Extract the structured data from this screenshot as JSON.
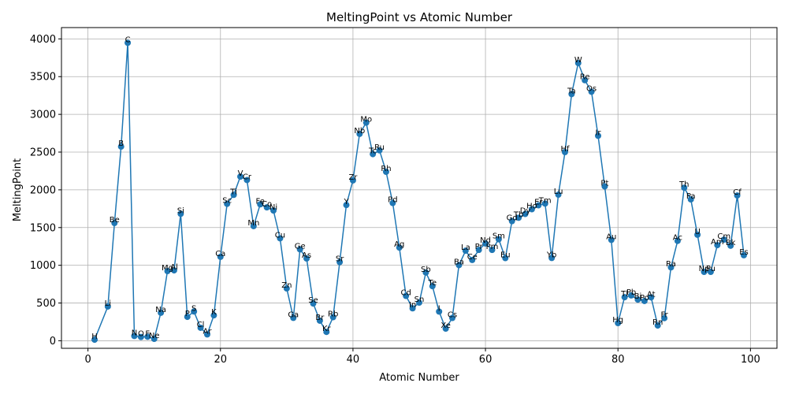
{
  "chart_data": {
    "type": "line",
    "title": "MeltingPoint vs Atomic Number",
    "xlabel": "Atomic Number",
    "ylabel": "MeltingPoint",
    "xlim": [
      -4,
      104
    ],
    "ylim": [
      -100,
      4150
    ],
    "xticks": [
      0,
      20,
      40,
      60,
      80,
      100
    ],
    "yticks": [
      0,
      500,
      1000,
      1500,
      2000,
      2500,
      3000,
      3500,
      4000
    ],
    "grid": true,
    "marker": "circle",
    "colors": {
      "series": "#1f77b4",
      "grid": "#b0b0b0"
    },
    "points": [
      {
        "x": 1,
        "y": 14,
        "label": "H"
      },
      {
        "x": 3,
        "y": 454,
        "label": "Li"
      },
      {
        "x": 4,
        "y": 1560,
        "label": "Be"
      },
      {
        "x": 5,
        "y": 2573,
        "label": "B"
      },
      {
        "x": 6,
        "y": 3948,
        "label": "C"
      },
      {
        "x": 7,
        "y": 63,
        "label": "N"
      },
      {
        "x": 8,
        "y": 50,
        "label": "O"
      },
      {
        "x": 9,
        "y": 53,
        "label": "F"
      },
      {
        "x": 10,
        "y": 25,
        "label": "Ne"
      },
      {
        "x": 11,
        "y": 371,
        "label": "Na"
      },
      {
        "x": 12,
        "y": 923,
        "label": "Mg"
      },
      {
        "x": 13,
        "y": 933,
        "label": "Al"
      },
      {
        "x": 14,
        "y": 1683,
        "label": "Si"
      },
      {
        "x": 15,
        "y": 317,
        "label": "P"
      },
      {
        "x": 16,
        "y": 388,
        "label": "S"
      },
      {
        "x": 17,
        "y": 172,
        "label": "Cl"
      },
      {
        "x": 18,
        "y": 84,
        "label": "Ar"
      },
      {
        "x": 19,
        "y": 337,
        "label": "K"
      },
      {
        "x": 20,
        "y": 1112,
        "label": "Ca"
      },
      {
        "x": 21,
        "y": 1814,
        "label": "Sc"
      },
      {
        "x": 22,
        "y": 1933,
        "label": "Ti"
      },
      {
        "x": 23,
        "y": 2175,
        "label": "V"
      },
      {
        "x": 24,
        "y": 2130,
        "label": "Cr"
      },
      {
        "x": 25,
        "y": 1519,
        "label": "Mn"
      },
      {
        "x": 26,
        "y": 1808,
        "label": "Fe"
      },
      {
        "x": 27,
        "y": 1768,
        "label": "Co"
      },
      {
        "x": 28,
        "y": 1726,
        "label": "Ni"
      },
      {
        "x": 29,
        "y": 1357,
        "label": "Cu"
      },
      {
        "x": 30,
        "y": 693,
        "label": "Zn"
      },
      {
        "x": 31,
        "y": 303,
        "label": "Ga"
      },
      {
        "x": 32,
        "y": 1211,
        "label": "Ge"
      },
      {
        "x": 33,
        "y": 1090,
        "label": "As"
      },
      {
        "x": 34,
        "y": 494,
        "label": "Se"
      },
      {
        "x": 35,
        "y": 266,
        "label": "Br"
      },
      {
        "x": 36,
        "y": 117,
        "label": "Kr"
      },
      {
        "x": 37,
        "y": 312,
        "label": "Rb"
      },
      {
        "x": 38,
        "y": 1042,
        "label": "Sr"
      },
      {
        "x": 39,
        "y": 1799,
        "label": "Y"
      },
      {
        "x": 40,
        "y": 2125,
        "label": "Zr"
      },
      {
        "x": 41,
        "y": 2741,
        "label": "Nb"
      },
      {
        "x": 42,
        "y": 2890,
        "label": "Mo"
      },
      {
        "x": 43,
        "y": 2473,
        "label": "Tc"
      },
      {
        "x": 44,
        "y": 2523,
        "label": "Ru"
      },
      {
        "x": 45,
        "y": 2239,
        "label": "Rh"
      },
      {
        "x": 46,
        "y": 1825,
        "label": "Pd"
      },
      {
        "x": 47,
        "y": 1235,
        "label": "Ag"
      },
      {
        "x": 48,
        "y": 594,
        "label": "Cd"
      },
      {
        "x": 49,
        "y": 430,
        "label": "In"
      },
      {
        "x": 50,
        "y": 505,
        "label": "Sn"
      },
      {
        "x": 51,
        "y": 904,
        "label": "Sb"
      },
      {
        "x": 52,
        "y": 723,
        "label": "Te"
      },
      {
        "x": 53,
        "y": 387,
        "label": "I"
      },
      {
        "x": 54,
        "y": 161,
        "label": "Xe"
      },
      {
        "x": 55,
        "y": 302,
        "label": "Cs"
      },
      {
        "x": 56,
        "y": 1002,
        "label": "Ba"
      },
      {
        "x": 57,
        "y": 1193,
        "label": "La"
      },
      {
        "x": 58,
        "y": 1071,
        "label": "Ce"
      },
      {
        "x": 59,
        "y": 1204,
        "label": "Pr"
      },
      {
        "x": 60,
        "y": 1289,
        "label": "Nd"
      },
      {
        "x": 61,
        "y": 1204,
        "label": "Pm"
      },
      {
        "x": 62,
        "y": 1345,
        "label": "Sm"
      },
      {
        "x": 63,
        "y": 1095,
        "label": "Eu"
      },
      {
        "x": 64,
        "y": 1585,
        "label": "Gd"
      },
      {
        "x": 65,
        "y": 1630,
        "label": "Tb"
      },
      {
        "x": 66,
        "y": 1680,
        "label": "Dy"
      },
      {
        "x": 67,
        "y": 1743,
        "label": "Ho"
      },
      {
        "x": 68,
        "y": 1795,
        "label": "Er"
      },
      {
        "x": 69,
        "y": 1818,
        "label": "Tm"
      },
      {
        "x": 70,
        "y": 1097,
        "label": "Yb"
      },
      {
        "x": 71,
        "y": 1936,
        "label": "Lu"
      },
      {
        "x": 72,
        "y": 2500,
        "label": "Hf"
      },
      {
        "x": 73,
        "y": 3269,
        "label": "Ta"
      },
      {
        "x": 74,
        "y": 3680,
        "label": "W"
      },
      {
        "x": 75,
        "y": 3453,
        "label": "Re"
      },
      {
        "x": 76,
        "y": 3300,
        "label": "Os"
      },
      {
        "x": 77,
        "y": 2716,
        "label": "Ir"
      },
      {
        "x": 78,
        "y": 2045,
        "label": "Pt"
      },
      {
        "x": 79,
        "y": 1337,
        "label": "Au"
      },
      {
        "x": 80,
        "y": 234,
        "label": "Hg"
      },
      {
        "x": 81,
        "y": 577,
        "label": "Tl"
      },
      {
        "x": 82,
        "y": 601,
        "label": "Pb"
      },
      {
        "x": 83,
        "y": 545,
        "label": "Bi"
      },
      {
        "x": 84,
        "y": 527,
        "label": "Po"
      },
      {
        "x": 85,
        "y": 575,
        "label": "At"
      },
      {
        "x": 86,
        "y": 202,
        "label": "Rn"
      },
      {
        "x": 87,
        "y": 300,
        "label": "Fr"
      },
      {
        "x": 88,
        "y": 973,
        "label": "Ra"
      },
      {
        "x": 89,
        "y": 1323,
        "label": "Ac"
      },
      {
        "x": 90,
        "y": 2028,
        "label": "Th"
      },
      {
        "x": 91,
        "y": 1873,
        "label": "Pa"
      },
      {
        "x": 92,
        "y": 1405,
        "label": "U"
      },
      {
        "x": 93,
        "y": 913,
        "label": "Np"
      },
      {
        "x": 94,
        "y": 913,
        "label": "Pu"
      },
      {
        "x": 95,
        "y": 1267,
        "label": "Am"
      },
      {
        "x": 96,
        "y": 1340,
        "label": "Cm"
      },
      {
        "x": 97,
        "y": 1259,
        "label": "Bk"
      },
      {
        "x": 98,
        "y": 1925,
        "label": "Cf"
      },
      {
        "x": 99,
        "y": 1133,
        "label": "Es"
      }
    ]
  }
}
